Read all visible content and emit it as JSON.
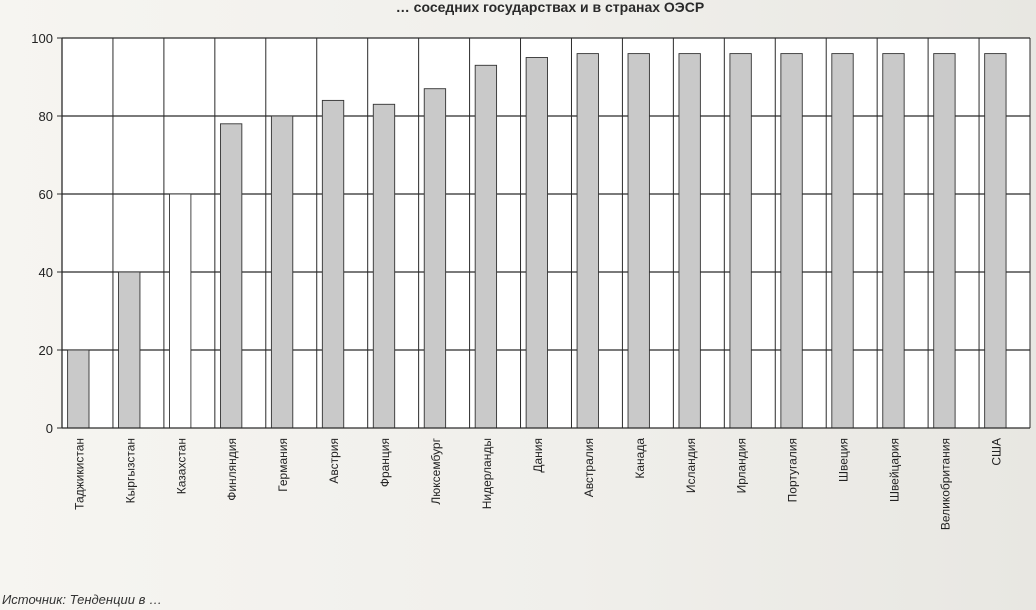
{
  "title": "… соседних государствах и в странах ОЭСР",
  "footer": {
    "source": "Источник: Тенденции в …"
  },
  "chart_data": {
    "type": "bar",
    "title": "… соседних государствах и в странах ОЭСР",
    "xlabel": "",
    "ylabel": "",
    "ylim": [
      0,
      100
    ],
    "yticks": [
      0,
      20,
      40,
      60,
      80,
      100
    ],
    "grid": true,
    "legend": "none",
    "categories": [
      "Таджикистан",
      "Кыргызстан",
      "Казахстан",
      "Финляндия",
      "Германия",
      "Австрия",
      "Франция",
      "Люксембург",
      "Нидерланды",
      "Дания",
      "Австралия",
      "Канада",
      "Исландия",
      "Ирландия",
      "Португалия",
      "Швеция",
      "Швейцария",
      "Великобритания",
      "США"
    ],
    "values": [
      20,
      40,
      60,
      78,
      80,
      84,
      83,
      87,
      93,
      95,
      96,
      96,
      96,
      96,
      96,
      96,
      96,
      96,
      96
    ],
    "bar_colors": [
      "#c9c9c9",
      "#c9c9c9",
      "#ffffff",
      "#c9c9c9",
      "#c9c9c9",
      "#c9c9c9",
      "#c9c9c9",
      "#c9c9c9",
      "#c9c9c9",
      "#c9c9c9",
      "#c9c9c9",
      "#c9c9c9",
      "#c9c9c9",
      "#c9c9c9",
      "#c9c9c9",
      "#c9c9c9",
      "#c9c9c9",
      "#c9c9c9",
      "#c9c9c9"
    ]
  }
}
